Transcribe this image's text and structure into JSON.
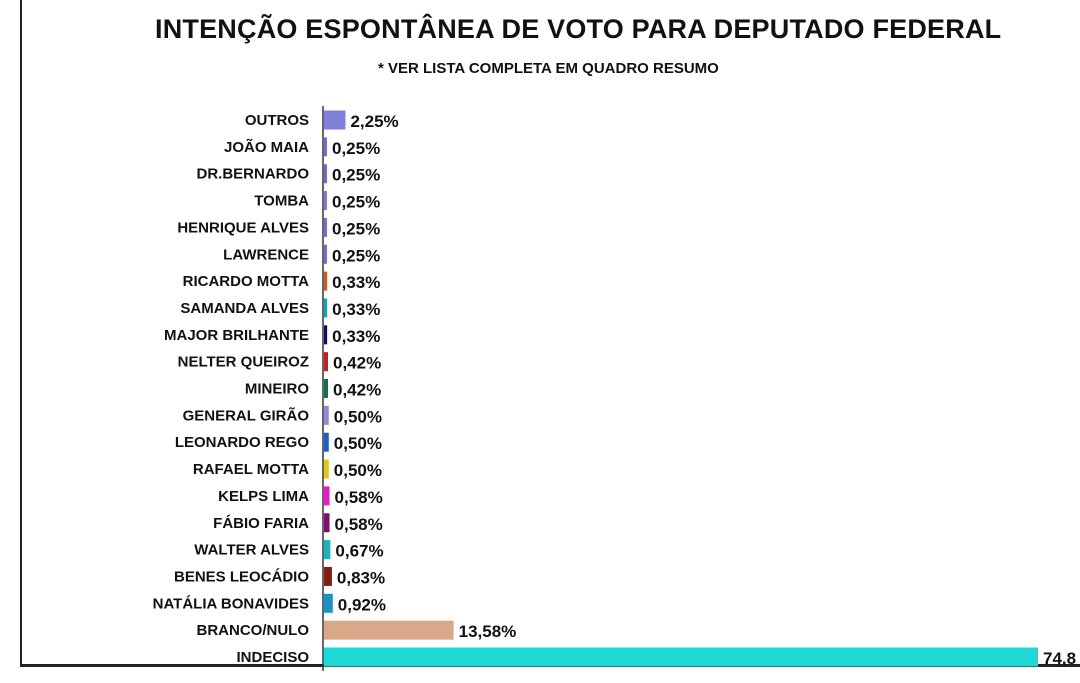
{
  "chart_data": {
    "type": "bar",
    "orientation": "horizontal",
    "title": "INTENÇÃO ESPONTÂNEA DE VOTO PARA DEPUTADO FEDERAL",
    "subtitle": "* VER LISTA COMPLETA EM QUADRO RESUMO",
    "categories": [
      "OUTROS",
      "JOÃO MAIA",
      "DR.BERNARDO",
      "TOMBA",
      "HENRIQUE ALVES",
      "LAWRENCE",
      "RICARDO MOTTA",
      "SAMANDA ALVES",
      "MAJOR BRILHANTE",
      "NELTER QUEIROZ",
      "MINEIRO",
      "GENERAL GIRÃO",
      "LEONARDO REGO",
      "RAFAEL MOTTA",
      "KELPS LIMA",
      "FÁBIO FARIA",
      "WALTER ALVES",
      "BENES LEOCÁDIO",
      "NATÁLIA BONAVIDES",
      "BRANCO/NULO",
      "INDECISO"
    ],
    "values": [
      2.25,
      0.25,
      0.25,
      0.25,
      0.25,
      0.25,
      0.33,
      0.33,
      0.33,
      0.42,
      0.42,
      0.5,
      0.5,
      0.5,
      0.58,
      0.58,
      0.67,
      0.83,
      0.92,
      13.58,
      74.8
    ],
    "value_labels": [
      "2,25%",
      "0,25%",
      "0,25%",
      "0,25%",
      "0,25%",
      "0,25%",
      "0,33%",
      "0,33%",
      "0,33%",
      "0,42%",
      "0,42%",
      "0,50%",
      "0,50%",
      "0,50%",
      "0,58%",
      "0,58%",
      "0,67%",
      "0,83%",
      "0,92%",
      "13,58%",
      "74,8"
    ],
    "colors": [
      "#8080d8",
      "#7070c8",
      "#7a68c0",
      "#8878c8",
      "#7c6cc4",
      "#7070c0",
      "#c06020",
      "#20a0a0",
      "#101050",
      "#c02020",
      "#107050",
      "#9888d0",
      "#2060c0",
      "#d8c820",
      "#e020c0",
      "#801070",
      "#20b0c0",
      "#802010",
      "#2090c0",
      "#d8a888",
      "#20d8d8"
    ],
    "xlim": [
      0,
      74.8
    ],
    "grid": false,
    "legend": "none"
  }
}
